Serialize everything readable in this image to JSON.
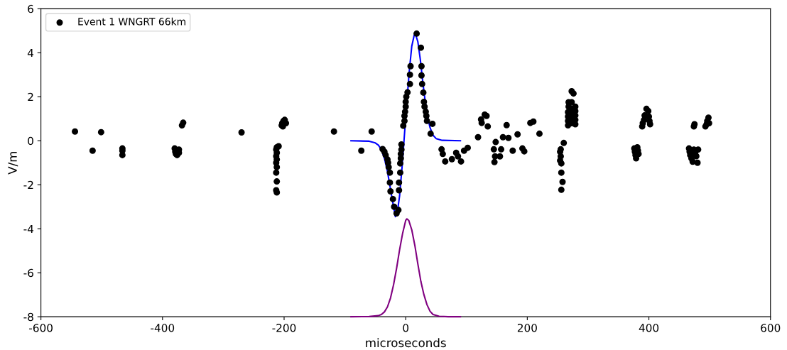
{
  "chart_data": {
    "type": "scatter",
    "xlabel": "microseconds",
    "ylabel": "V/m",
    "xlim": [
      -600,
      600
    ],
    "ylim": [
      -8,
      6
    ],
    "xticks": [
      -600,
      -400,
      -200,
      0,
      200,
      400,
      600
    ],
    "yticks": [
      -8,
      -6,
      -4,
      -2,
      0,
      2,
      4,
      6
    ],
    "grid": false,
    "legend": "top left",
    "marker": "circle",
    "series": [
      {
        "name": "Event 1 WNGRT 66km",
        "color": "#000000",
        "x": [
          -544,
          -515,
          -501,
          -466,
          -466,
          -466,
          -380,
          -379,
          -378,
          -376,
          -373,
          -373,
          -368,
          -366,
          -270,
          -212,
          -213,
          -212,
          -213,
          -212,
          -213,
          -212,
          -213,
          -212,
          -213,
          -212,
          -209,
          -204,
          -203,
          -201,
          -199,
          -197,
          -202,
          -118,
          -73,
          -56,
          -38,
          -35,
          -33,
          -30,
          -29,
          -28,
          -26,
          -26,
          -25,
          -21,
          -19,
          -15,
          -12,
          -11,
          -11,
          -9,
          -9,
          -8,
          -8,
          -7,
          -7,
          -4,
          -2,
          -2,
          -1,
          0,
          0,
          1,
          3,
          7,
          7,
          8,
          18,
          25,
          26,
          26,
          27,
          29,
          30,
          31,
          33,
          34,
          35,
          44,
          41,
          59,
          61,
          65,
          76,
          83,
          86,
          91,
          96,
          102,
          119,
          125,
          130,
          133,
          135,
          124,
          145,
          146,
          147,
          148,
          155,
          157,
          160,
          166,
          169,
          176,
          184,
          192,
          195,
          205,
          210,
          220,
          260,
          255,
          255,
          256,
          256,
          258,
          256,
          254,
          254,
          267,
          267,
          267,
          267,
          268,
          268,
          273,
          273,
          273,
          273,
          273,
          273,
          276,
          279,
          279,
          279,
          279,
          279,
          376,
          377,
          378,
          379,
          381,
          382,
          383,
          389,
          390,
          392,
          393,
          396,
          399,
          400,
          401,
          402,
          466,
          467,
          468,
          470,
          472,
          474,
          476,
          478,
          480,
          481,
          474,
          475,
          493,
          495,
          496,
          498,
          499
        ],
        "values": [
          0.42,
          -0.45,
          0.39,
          -0.35,
          -0.45,
          -0.65,
          -0.35,
          -0.5,
          -0.6,
          -0.65,
          -0.4,
          -0.55,
          0.7,
          0.82,
          0.38,
          -0.3,
          -0.4,
          -0.55,
          -0.7,
          -0.85,
          -1.0,
          -1.2,
          -1.45,
          -1.85,
          -2.25,
          -2.35,
          -0.25,
          0.7,
          0.8,
          0.9,
          0.95,
          0.8,
          0.65,
          0.42,
          -0.45,
          0.42,
          -0.38,
          -0.5,
          -0.65,
          -0.85,
          -1.0,
          -1.2,
          -1.45,
          -1.9,
          -2.3,
          -2.65,
          -3.0,
          -3.3,
          -3.15,
          -2.25,
          -1.9,
          -1.45,
          -1.03,
          -0.8,
          -0.6,
          -0.4,
          -0.17,
          0.68,
          0.9,
          1.13,
          1.32,
          1.55,
          1.77,
          2.0,
          2.2,
          2.58,
          3.0,
          3.39,
          4.87,
          4.23,
          3.39,
          2.97,
          2.58,
          2.19,
          1.77,
          1.55,
          1.32,
          1.13,
          0.9,
          0.77,
          0.32,
          -0.39,
          -0.6,
          -0.94,
          -0.84,
          -0.55,
          -0.71,
          -0.94,
          -0.45,
          -0.32,
          0.16,
          0.81,
          1.19,
          1.13,
          0.65,
          0.97,
          -0.39,
          -0.97,
          -0.71,
          -0.06,
          -0.71,
          -0.39,
          0.16,
          0.71,
          0.13,
          -0.45,
          0.29,
          -0.35,
          -0.48,
          0.81,
          0.87,
          0.32,
          -0.1,
          -0.39,
          -0.71,
          -1.03,
          -1.45,
          -1.87,
          -2.23,
          -0.5,
          -0.9,
          0.7,
          0.9,
          1.1,
          1.3,
          1.55,
          1.75,
          0.8,
          1.0,
          1.2,
          1.45,
          1.75,
          2.25,
          2.15,
          0.75,
          0.95,
          1.15,
          1.35,
          1.55,
          -0.35,
          -0.5,
          -0.65,
          -0.8,
          -0.3,
          -0.45,
          -0.6,
          0.65,
          0.8,
          0.95,
          1.15,
          1.45,
          1.35,
          1.1,
          0.9,
          0.75,
          -0.35,
          -0.5,
          -0.65,
          -0.8,
          -0.95,
          -0.4,
          -0.55,
          -0.7,
          -1.0,
          -0.4,
          0.65,
          0.75,
          0.65,
          0.75,
          0.9,
          1.05,
          0.8
        ]
      },
      {
        "type": "line",
        "color": "#0000ff",
        "marker": "none",
        "x": [
          -90,
          -60,
          -50,
          -45,
          -40,
          -35,
          -30,
          -25,
          -20,
          -17,
          -14,
          -10,
          -6,
          -2,
          2,
          6,
          10,
          14,
          16,
          20,
          24,
          28,
          32,
          36,
          40,
          45,
          50,
          60,
          90
        ],
        "values": [
          0,
          -0.02,
          -0.1,
          -0.2,
          -0.4,
          -0.8,
          -1.4,
          -2.2,
          -3.0,
          -3.45,
          -3.3,
          -2.5,
          -1.2,
          0.3,
          1.8,
          3.2,
          4.3,
          4.8,
          4.85,
          4.5,
          3.7,
          2.7,
          1.8,
          1.1,
          0.6,
          0.25,
          0.1,
          0.02,
          0
        ]
      },
      {
        "type": "line",
        "color": "#800080",
        "marker": "none",
        "x": [
          -90,
          -60,
          -45,
          -40,
          -35,
          -30,
          -25,
          -20,
          -15,
          -10,
          -5,
          0,
          2,
          5,
          10,
          15,
          20,
          25,
          30,
          35,
          40,
          45,
          55,
          70,
          90
        ],
        "values": [
          -8,
          -7.99,
          -7.95,
          -7.9,
          -7.78,
          -7.55,
          -7.15,
          -6.55,
          -5.8,
          -4.95,
          -4.2,
          -3.62,
          -3.55,
          -3.62,
          -4.05,
          -4.75,
          -5.6,
          -6.4,
          -7.0,
          -7.45,
          -7.75,
          -7.9,
          -7.98,
          -8,
          -8
        ]
      }
    ]
  }
}
